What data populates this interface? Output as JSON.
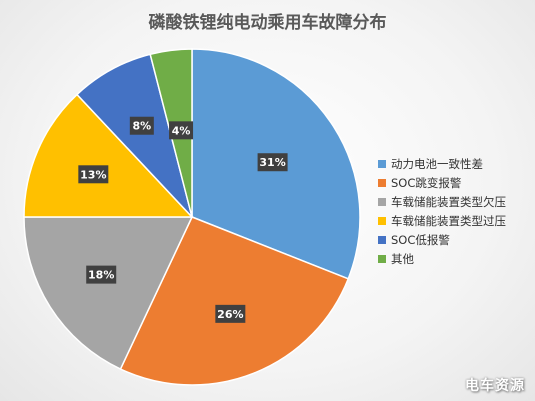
{
  "chart_data": {
    "type": "pie",
    "title": "磷酸铁锂纯电动乘用车故障分布",
    "slices": [
      {
        "label": "动力电池一致性差",
        "value": 31,
        "display": "31%",
        "color": "#5b9bd5"
      },
      {
        "label": "SOC跳变报警",
        "value": 26,
        "display": "26%",
        "color": "#ed7d31"
      },
      {
        "label": "车载储能装置类型欠压",
        "value": 18,
        "display": "18%",
        "color": "#a5a5a5"
      },
      {
        "label": "车载储能装置类型过压",
        "value": 13,
        "display": "13%",
        "color": "#ffc000"
      },
      {
        "label": "SOC低报警",
        "value": 8,
        "display": "8%",
        "color": "#4472c4"
      },
      {
        "label": "其他",
        "value": 4,
        "display": "4%",
        "color": "#70ad47"
      }
    ],
    "legend_position": "right"
  },
  "watermark": {
    "text": "电车资源"
  }
}
